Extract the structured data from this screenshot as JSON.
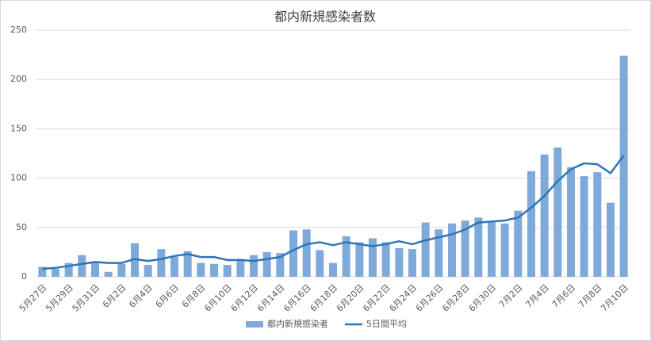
{
  "chart_data": {
    "type": "bar_line",
    "title": "都内新規感染者数",
    "categories": [
      "5月27日",
      null,
      "5月29日",
      null,
      "5月31日",
      null,
      "6月2日",
      null,
      "6月4日",
      null,
      "6月6日",
      null,
      "6月8日",
      null,
      "6月10日",
      null,
      "6月12日",
      null,
      "6月14日",
      null,
      "6月16日",
      null,
      "6月18日",
      null,
      "6月20日",
      null,
      "6月22日",
      null,
      "6月24日",
      null,
      "6月26日",
      null,
      "6月28日",
      null,
      "6月30日",
      null,
      "7月2日",
      null,
      "7月4日",
      null,
      "7月6日",
      null,
      "7月8日",
      null,
      "7月10日"
    ],
    "series": [
      {
        "name": "都内新規感染者",
        "type": "bar",
        "color": "#7fa9da",
        "values": [
          10,
          8,
          14,
          22,
          14,
          5,
          13,
          34,
          12,
          28,
          20,
          26,
          14,
          13,
          12,
          18,
          22,
          25,
          24,
          47,
          48,
          27,
          14,
          41,
          35,
          39,
          35,
          29,
          28,
          55,
          48,
          54,
          57,
          60,
          55,
          54,
          67,
          107,
          124,
          131,
          111,
          102,
          106,
          75,
          224
        ]
      },
      {
        "name": "5日間平均",
        "type": "line",
        "color": "#2e75b6",
        "values": [
          8,
          9,
          11,
          13,
          15,
          14,
          14,
          18,
          16,
          18,
          21,
          23,
          20,
          20,
          17,
          17,
          16,
          18,
          20,
          27,
          33,
          35,
          32,
          35,
          33,
          31,
          33,
          36,
          33,
          37,
          40,
          43,
          48,
          55,
          56,
          57,
          60,
          70,
          82,
          97,
          109,
          115,
          114,
          105,
          123
        ]
      }
    ],
    "ylim": [
      0,
      250
    ],
    "yticks": [
      0,
      50,
      100,
      150,
      200,
      250
    ],
    "grid": true,
    "legend": "bottom"
  }
}
